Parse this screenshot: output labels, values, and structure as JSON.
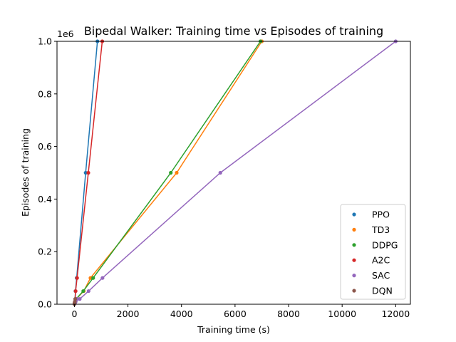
{
  "chart_data": {
    "type": "scatter",
    "title": "Bipedal Walker: Training time vs Episodes of training",
    "xlabel": "Training time (s)",
    "ylabel": "Episodes of training",
    "y_offset_label": "1e6",
    "xlim": [
      -650,
      12550
    ],
    "ylim": [
      0,
      1000000
    ],
    "xticks": [
      0,
      2000,
      4000,
      6000,
      8000,
      10000,
      12000
    ],
    "xtick_labels": [
      "0",
      "2000",
      "4000",
      "6000",
      "8000",
      "10000",
      "12000"
    ],
    "yticks": [
      0,
      200000,
      400000,
      600000,
      800000,
      1000000
    ],
    "ytick_labels": [
      "0.0",
      "0.2",
      "0.4",
      "0.6",
      "0.8",
      "1.0"
    ],
    "grid": false,
    "legend_position": "bottom-right",
    "series": [
      {
        "name": "PPO",
        "color": "#1f77b4",
        "x": [
          2,
          9,
          18,
          40,
          85,
          420,
          860
        ],
        "y": [
          1000,
          5000,
          10000,
          50000,
          100000,
          500000,
          1000000
        ]
      },
      {
        "name": "TD3",
        "color": "#ff7f0e",
        "x": [
          3,
          17,
          34,
          70,
          350,
          600,
          3820,
          7000
        ],
        "y": [
          1000,
          5000,
          10000,
          20000,
          50000,
          100000,
          500000,
          1000000
        ]
      },
      {
        "name": "DDPG",
        "color": "#2ca02c",
        "x": [
          3,
          17,
          34,
          65,
          330,
          700,
          3600,
          6950
        ],
        "y": [
          1000,
          5000,
          10000,
          20000,
          50000,
          100000,
          500000,
          1000000
        ]
      },
      {
        "name": "A2C",
        "color": "#d62728",
        "x": [
          2,
          10,
          20,
          45,
          100,
          520,
          1040
        ],
        "y": [
          1000,
          5000,
          10000,
          50000,
          100000,
          500000,
          1000000
        ]
      },
      {
        "name": "SAC",
        "color": "#9467bd",
        "x": [
          5,
          25,
          50,
          100,
          200,
          530,
          1050,
          5450,
          12000
        ],
        "y": [
          1000,
          5000,
          10000,
          20000,
          20000,
          50000,
          100000,
          500000,
          1000000
        ]
      },
      {
        "name": "DQN",
        "color": "#8c564b",
        "x": [
          2,
          8,
          15,
          30
        ],
        "y": [
          1000,
          5000,
          10000,
          20000
        ]
      }
    ]
  }
}
